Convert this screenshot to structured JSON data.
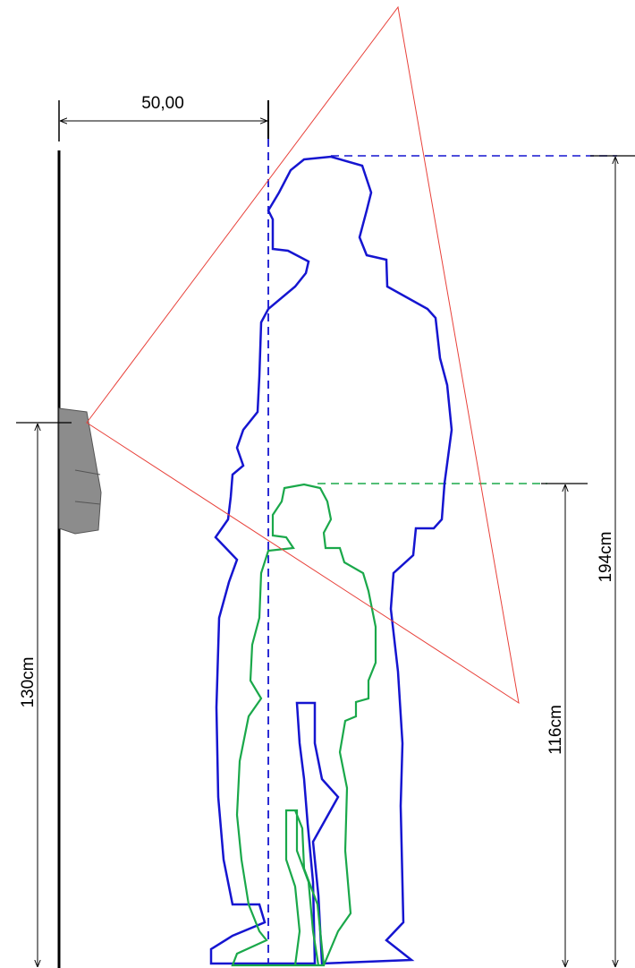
{
  "dimensions": {
    "distance": "50,00",
    "device_height": "130cm",
    "child_height": "116cm",
    "adult_height": "194cm"
  }
}
